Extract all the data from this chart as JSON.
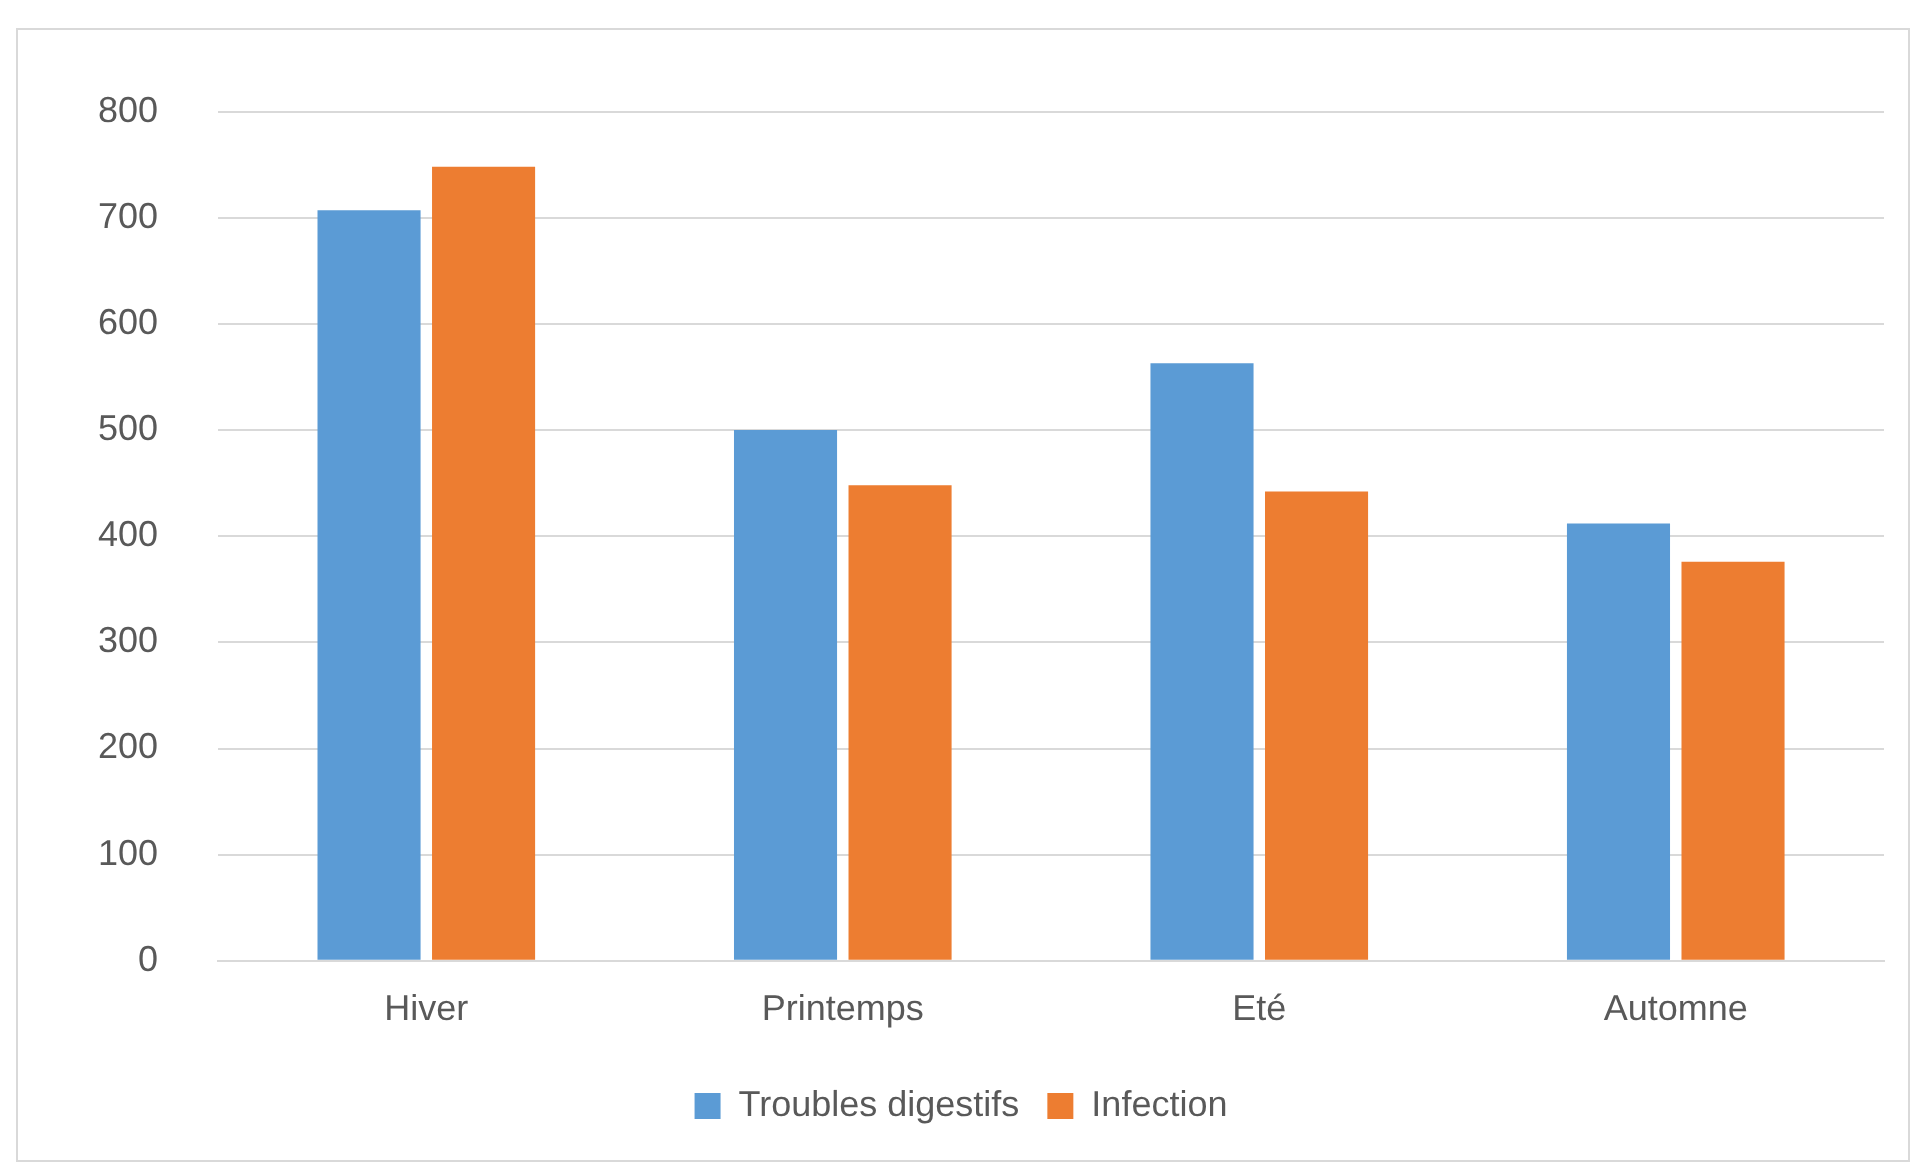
{
  "chart_data": {
    "type": "bar",
    "categories": [
      "Hiver",
      "Printemps",
      "Eté",
      "Automne"
    ],
    "series": [
      {
        "name": "Troubles digestifs",
        "color": "#5b9bd5",
        "values": [
          707,
          500,
          563,
          412
        ]
      },
      {
        "name": "Infection",
        "color": "#ed7d31",
        "values": [
          748,
          448,
          442,
          376
        ]
      }
    ],
    "ylim": [
      0,
      800
    ],
    "yticks": [
      0,
      100,
      200,
      300,
      400,
      500,
      600,
      700,
      800
    ],
    "grid": "y",
    "legend": "bottom"
  }
}
